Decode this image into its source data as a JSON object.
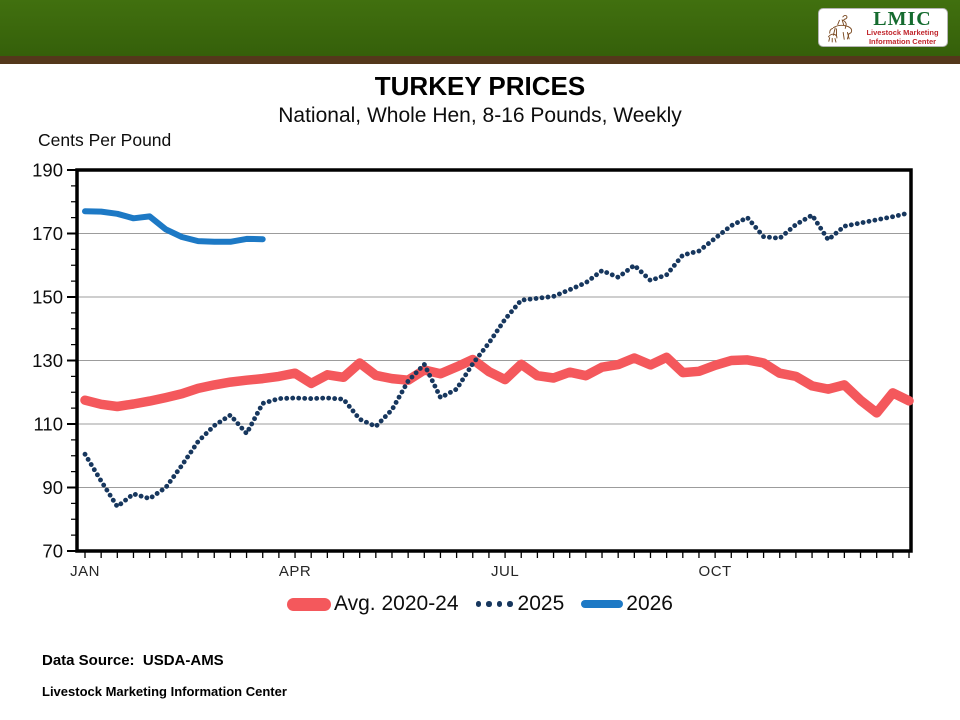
{
  "header": {
    "bar_color": "#3b660e",
    "stripe_color": "#54381b",
    "logo": {
      "acronym": "LMIC",
      "line1": "Livestock Marketing",
      "line2": "Information Center",
      "acronym_color": "#156b2f",
      "caption_color": "#c1272d"
    }
  },
  "title": "TURKEY PRICES",
  "subtitle": "National, Whole Hen, 8-16 Pounds, Weekly",
  "y_axis_label": "Cents Per Pound",
  "footer": {
    "source": "Data Source:  USDA-AMS",
    "org": "Livestock Marketing Information Center"
  },
  "chart_data": {
    "type": "line",
    "title": "TURKEY PRICES",
    "subtitle": "National, Whole Hen, 8-16 Pounds, Weekly",
    "ylabel": "Cents Per Pound",
    "x_unit": "week-of-year",
    "weeks": 52,
    "ylim": [
      70,
      190
    ],
    "y_major_step": 20,
    "y_minor_step": 5,
    "grid": "horizontal-major-only",
    "legend_position": "bottom",
    "x_tick_labels": [
      {
        "label": "JAN",
        "week": 1
      },
      {
        "label": "APR",
        "week": 14
      },
      {
        "label": "JUL",
        "week": 27
      },
      {
        "label": "OCT",
        "week": 40
      }
    ],
    "series": [
      {
        "name": "Avg. 2020-24",
        "color": "#f4585c",
        "style": "solid-thick",
        "stroke_width": 9.5,
        "start_week": 1,
        "values": [
          117.5,
          116.2,
          115.5,
          116.3,
          117.2,
          118.3,
          119.5,
          121.2,
          122.3,
          123.2,
          123.8,
          124.3,
          125.0,
          126.0,
          122.8,
          125.5,
          124.7,
          129.2,
          125.3,
          124.3,
          123.8,
          127.0,
          125.8,
          128.0,
          130.3,
          126.5,
          124.0,
          128.8,
          125.2,
          124.5,
          126.3,
          125.2,
          127.9,
          128.7,
          130.8,
          128.6,
          131.0,
          126.2,
          126.6,
          128.5,
          130.0,
          130.2,
          129.2,
          126.0,
          125.0,
          122.0,
          121.0,
          122.3,
          117.5,
          113.5,
          119.8,
          117.3
        ]
      },
      {
        "name": "2025",
        "color": "#17375e",
        "style": "dotted",
        "stroke_width": 4.8,
        "start_week": 1,
        "values": [
          100.5,
          92.0,
          84.0,
          88.0,
          86.5,
          90.0,
          97.0,
          104.5,
          109.5,
          112.8,
          107.0,
          116.5,
          118.0,
          118.2,
          118.0,
          118.2,
          117.8,
          111.5,
          109.2,
          114.5,
          123.5,
          128.8,
          118.3,
          121.0,
          129.0,
          135.5,
          143.0,
          149.0,
          149.6,
          150.2,
          152.3,
          154.5,
          158.3,
          156.2,
          160.0,
          155.2,
          157.0,
          163.2,
          164.5,
          168.5,
          172.5,
          175.0,
          169.0,
          168.5,
          172.8,
          175.8,
          168.0,
          172.3,
          173.3,
          174.3,
          175.3,
          176.5
        ]
      },
      {
        "name": "2026",
        "color": "#1d79c5",
        "style": "solid",
        "stroke_width": 6,
        "start_week": 1,
        "values": [
          177.0,
          176.9,
          176.2,
          174.8,
          175.4,
          171.3,
          168.9,
          167.6,
          167.4,
          167.4,
          168.3,
          168.2
        ]
      }
    ]
  }
}
